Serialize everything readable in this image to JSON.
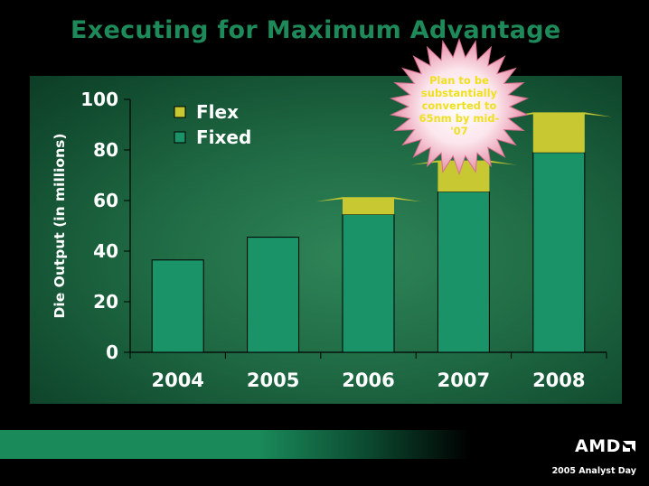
{
  "slide": {
    "title": "Executing for Maximum Advantage",
    "callout": "Plan to be substantially converted to 65nm by mid-'07",
    "logo": "AMD",
    "event": "2005 Analyst Day"
  },
  "colors": {
    "flex": "#c8c832",
    "fixed": "#1a9368",
    "title": "#1e8a5a",
    "axis_text": "#ffffff"
  },
  "chart_data": {
    "type": "bar",
    "stacked": true,
    "categories": [
      "2004",
      "2005",
      "2006",
      "2007",
      "2008"
    ],
    "series": [
      {
        "name": "Fixed",
        "values": [
          36.5,
          45.5,
          54.5,
          63.5,
          79
        ]
      },
      {
        "name": "Flex",
        "values": [
          0,
          0,
          6.5,
          12,
          15.5
        ]
      }
    ],
    "ylabel": "Die Output (in millions)",
    "xlabel": "",
    "ylim": [
      0,
      100
    ],
    "yticks": [
      0,
      20,
      40,
      60,
      80,
      100
    ],
    "legend": "top-left",
    "grid": false
  }
}
